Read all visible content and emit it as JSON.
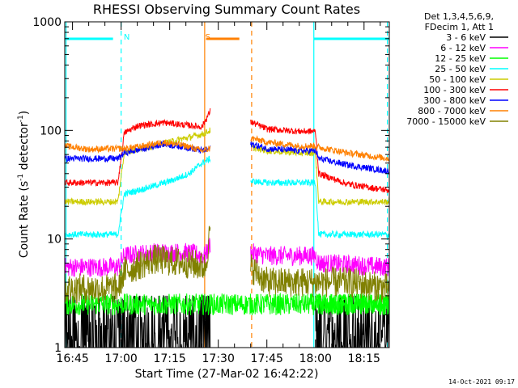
{
  "chart_data": {
    "type": "line",
    "title": "RHESSI Observing Summary Count Rates",
    "xlabel": "Start Time (27-Mar-02 16:42:22)",
    "ylabel": "Count Rate (s",
    "ylabel_sup1": "-1",
    "ylabel_mid": " detector",
    "ylabel_sup2": "-1",
    "ylabel_end": ")",
    "y_scale": "log",
    "ylim": [
      1,
      1000
    ],
    "xlim_minutes": [
      -2.4,
      97.8
    ],
    "x_ticks": [
      {
        "t": 0,
        "label": "16:45"
      },
      {
        "t": 15,
        "label": "17:00"
      },
      {
        "t": 30,
        "label": "17:15"
      },
      {
        "t": 45,
        "label": "17:30"
      },
      {
        "t": 60,
        "label": "17:45"
      },
      {
        "t": 75,
        "label": "18:00"
      },
      {
        "t": 90,
        "label": "18:15"
      }
    ],
    "y_ticks": [
      {
        "v": 1,
        "label": "1"
      },
      {
        "v": 10,
        "label": "10"
      },
      {
        "v": 100,
        "label": "100"
      },
      {
        "v": 1000,
        "label": "1000"
      }
    ],
    "legend_header": [
      "Det 1,3,4,5,6,9,",
      "FDecim 1, Att 1"
    ],
    "legend_position": "top-right",
    "series": [
      {
        "name": "3 - 6 keV",
        "color": "#000000",
        "segments": [
          {
            "t": [
              -2.4,
              15,
              40,
              42.5
            ],
            "y": [
              1.5,
              1.5,
              1.5,
              2.0
            ]
          },
          {
            "t": [
              75,
              80,
              90,
              97.8
            ],
            "y": [
              1.5,
              1.5,
              1.5,
              1.5
            ]
          }
        ]
      },
      {
        "name": "6 - 12 keV",
        "color": "#ff00ff",
        "segments": [
          {
            "t": [
              -2.4,
              14,
              16,
              25,
              35,
              41,
              42.5
            ],
            "y": [
              5.5,
              5.5,
              7.0,
              7.5,
              7.5,
              7.0,
              9.0
            ]
          },
          {
            "t": [
              55,
              60,
              70,
              75,
              76,
              85,
              97.8
            ],
            "y": [
              7.5,
              7.0,
              7.0,
              7.0,
              6.0,
              5.8,
              5.5
            ]
          }
        ]
      },
      {
        "name": "12 - 25 keV",
        "color": "#00ff00",
        "segments": [
          {
            "t": [
              -2.4,
              14,
              15,
              97.8
            ],
            "y": [
              2.5,
              2.5,
              2.5,
              2.5
            ]
          },
          {
            "t": [
              75,
              80,
              90,
              97.8
            ],
            "y": [
              2.5,
              2.5,
              2.5,
              2.5
            ]
          }
        ]
      },
      {
        "name": "25 - 50 keV",
        "color": "#00ffff",
        "segments": [
          {
            "t": [
              -2.4,
              14,
              16,
              22,
              30,
              36,
              40,
              42.5
            ],
            "y": [
              11,
              11,
              26,
              29,
              34,
              40,
              50,
              55
            ]
          },
          {
            "t": [
              55,
              60,
              70,
              75,
              76,
              85,
              97.8
            ],
            "y": [
              34,
              33,
              33,
              33,
              11,
              11,
              11
            ]
          }
        ]
      },
      {
        "name": "50 - 100 keV",
        "color": "#cccc00",
        "segments": [
          {
            "t": [
              -2.4,
              14,
              16,
              25,
              35,
              40,
              42.5
            ],
            "y": [
              22,
              22,
              63,
              72,
              85,
              92,
              100
            ]
          },
          {
            "t": [
              55,
              60,
              70,
              75,
              76,
              85,
              97.8
            ],
            "y": [
              70,
              65,
              62,
              62,
              22,
              22,
              22
            ]
          }
        ]
      },
      {
        "name": "100 - 300 keV",
        "color": "#ff0000",
        "segments": [
          {
            "t": [
              -2.4,
              14,
              16,
              20,
              28,
              35,
              40,
              42.5
            ],
            "y": [
              33,
              33,
              95,
              110,
              118,
              112,
              108,
              150
            ]
          },
          {
            "t": [
              55,
              60,
              70,
              75,
              76,
              85,
              97.8
            ],
            "y": [
              120,
              103,
              98,
              98,
              40,
              32,
              28
            ]
          }
        ]
      },
      {
        "name": "300 - 800 keV",
        "color": "#0000ff",
        "segments": [
          {
            "t": [
              -2.4,
              14,
              16,
              22,
              28,
              35,
              40,
              42.5
            ],
            "y": [
              55,
              55,
              62,
              68,
              75,
              70,
              65,
              68
            ]
          },
          {
            "t": [
              55,
              60,
              70,
              75,
              76,
              85,
              97.8
            ],
            "y": [
              75,
              68,
              65,
              65,
              55,
              48,
              42
            ]
          }
        ]
      },
      {
        "name": "800 - 7000 keV",
        "color": "#ff8000",
        "segments": [
          {
            "t": [
              -2.4,
              5,
              14,
              16,
              22,
              28,
              35,
              40,
              42.5
            ],
            "y": [
              72,
              67,
              68,
              68,
              72,
              78,
              72,
              65,
              68
            ]
          },
          {
            "t": [
              55,
              60,
              70,
              75,
              76,
              85,
              97.8
            ],
            "y": [
              85,
              78,
              72,
              72,
              70,
              62,
              55
            ]
          }
        ]
      },
      {
        "name": "7000 - 15000 keV",
        "color": "#808000",
        "segments": [
          {
            "t": [
              -2.4,
              14,
              16,
              25,
              35,
              41,
              42.5
            ],
            "y": [
              3.5,
              3.5,
              5.0,
              6.5,
              6.0,
              5.5,
              12
            ]
          },
          {
            "t": [
              55,
              60,
              70,
              75,
              76,
              85,
              97.8
            ],
            "y": [
              5.5,
              4.0,
              4.0,
              4.0,
              4.0,
              4.0,
              3.5
            ]
          }
        ]
      }
    ],
    "annotations": [
      {
        "label": "N",
        "color": "#00ffff",
        "t": 15.8
      },
      {
        "label": "S",
        "color": "#ff8000",
        "t": 41.0
      }
    ],
    "footer_date": "14-Oct-2021 09:17"
  }
}
